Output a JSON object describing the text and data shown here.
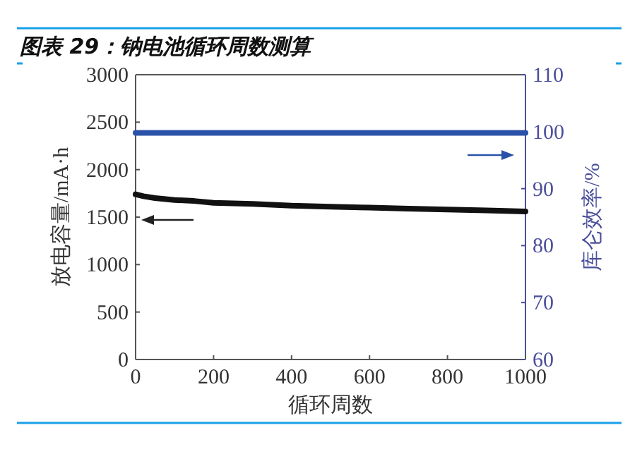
{
  "chart_data": {
    "type": "line",
    "title": "图表 29：钠电池循环周数测算",
    "xlabel": "循环周数",
    "ylabel": "放电容量/mA·h",
    "y2label": "库仑效率/%",
    "x": [
      0,
      20,
      50,
      100,
      150,
      200,
      300,
      400,
      500,
      600,
      700,
      800,
      900,
      1000
    ],
    "series": [
      {
        "color": "#111111",
        "values": [
          1740,
          1720,
          1700,
          1680,
          1670,
          1650,
          1640,
          1620,
          1610,
          1600,
          1590,
          1580,
          1570,
          1560
        ]
      },
      {
        "color": "#2a52a8",
        "axis": "y2",
        "values": [
          99.8,
          99.8,
          99.8,
          99.8,
          99.8,
          99.8,
          99.8,
          99.8,
          99.8,
          99.8,
          99.8,
          99.8,
          99.8,
          99.8
        ]
      }
    ],
    "xlim": [
      0,
      1000
    ],
    "xticks": [
      0,
      200,
      400,
      600,
      800,
      1000
    ],
    "ylim": [
      0,
      3000
    ],
    "yticks": [
      0,
      500,
      1000,
      1500,
      2000,
      2500,
      3000
    ],
    "y2lim": [
      60,
      110
    ],
    "y2ticks": [
      60,
      70,
      80,
      90,
      100,
      110
    ],
    "grid": false,
    "marker": "none",
    "line_style": "solid"
  }
}
